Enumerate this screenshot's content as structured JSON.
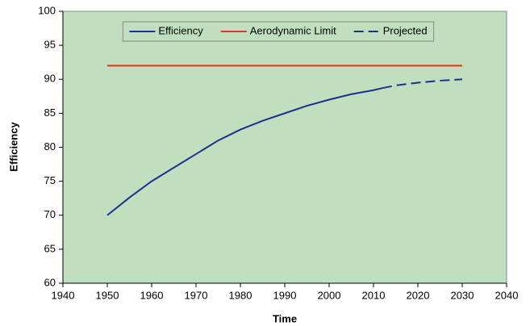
{
  "chart_data": {
    "type": "line",
    "xlabel": "Time",
    "ylabel": "Efficiency",
    "xlim": [
      1940,
      2040
    ],
    "xticks": [
      1940,
      1950,
      1960,
      1970,
      1980,
      1990,
      2000,
      2010,
      2020,
      2030,
      2040
    ],
    "ylim": [
      60,
      100
    ],
    "yticks": [
      60,
      65,
      70,
      75,
      80,
      85,
      90,
      95,
      100
    ],
    "background": "#bfdfbf",
    "legend": "top",
    "series": [
      {
        "name": "Efficiency",
        "color": "#1f2f8f",
        "dash": false,
        "x": [
          1950,
          1955,
          1960,
          1965,
          1970,
          1975,
          1980,
          1985,
          1990,
          1995,
          2000,
          2005,
          2010,
          2012
        ],
        "values": [
          70,
          72.6,
          75,
          77,
          79,
          81,
          82.6,
          83.9,
          85,
          86.1,
          87,
          87.8,
          88.4,
          88.7
        ]
      },
      {
        "name": "Aerodynamic Limit",
        "color": "#e8321e",
        "dash": false,
        "x": [
          1950,
          2030
        ],
        "values": [
          92,
          92
        ]
      },
      {
        "name": "Projected",
        "color": "#1f2f8f",
        "dash": true,
        "x": [
          2012,
          2015,
          2020,
          2025,
          2030
        ],
        "values": [
          88.7,
          89.1,
          89.5,
          89.8,
          90
        ]
      }
    ]
  }
}
